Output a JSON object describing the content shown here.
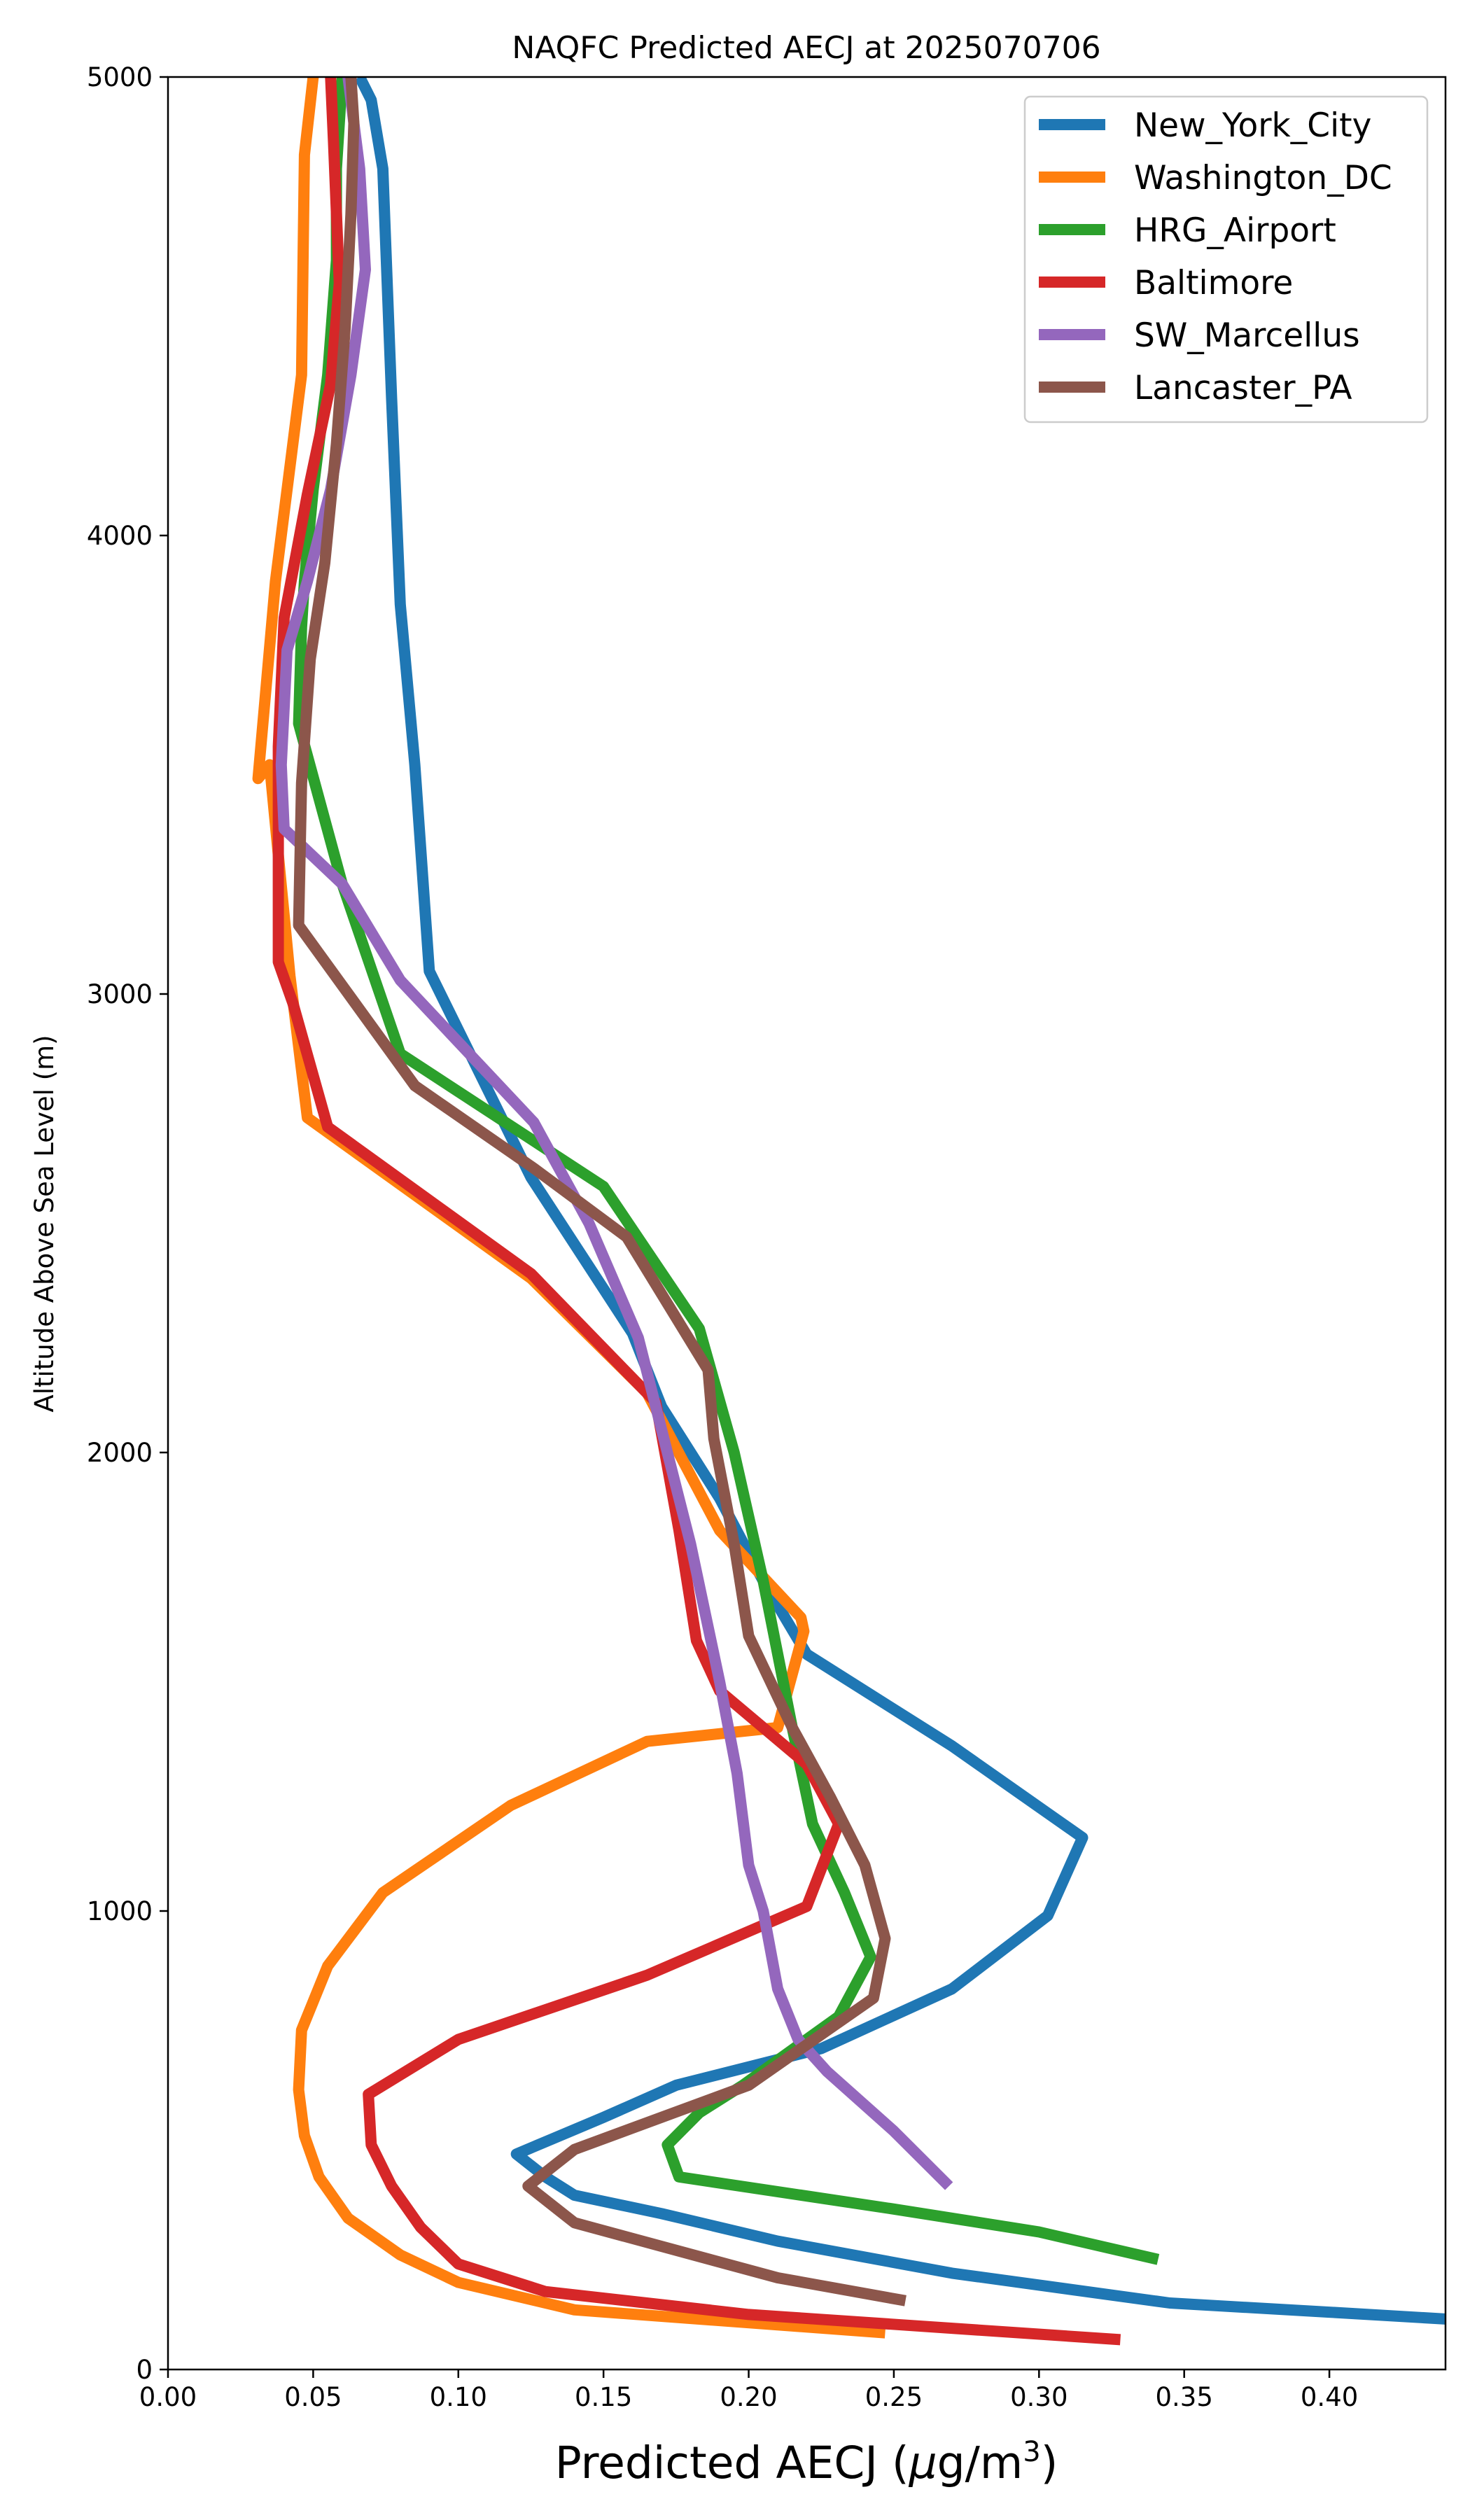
{
  "chart_data": {
    "type": "line",
    "orientation": "vertical-profile",
    "title": "NAQFC Predicted AECJ at 2025070706",
    "xlabel_main": "Predicted AECJ (",
    "xlabel_mu": "μ",
    "xlabel_unit": "g/m",
    "xlabel_sup": "3",
    "xlabel_close": ")",
    "ylabel": "Altitude Above Sea Level (m)",
    "xlim": [
      0.0,
      0.44
    ],
    "ylim": [
      0,
      5000
    ],
    "x_ticks": [
      0.0,
      0.05,
      0.1,
      0.15,
      0.2,
      0.25,
      0.3,
      0.35,
      0.4
    ],
    "x_tick_labels": [
      "0.00",
      "0.05",
      "0.10",
      "0.15",
      "0.20",
      "0.25",
      "0.30",
      "0.35",
      "0.40"
    ],
    "y_ticks": [
      0,
      1000,
      2000,
      3000,
      4000,
      5000
    ],
    "y_tick_labels": [
      "0",
      "1000",
      "2000",
      "3000",
      "4000",
      "5000"
    ],
    "grid": false,
    "legend_position": "top-right",
    "series": [
      {
        "name": "New_York_City",
        "color": "#1f77b4",
        "x": [
          0.44,
          0.4,
          0.345,
          0.27,
          0.21,
          0.17,
          0.14,
          0.13,
          0.12,
          0.15,
          0.175,
          0.225,
          0.27,
          0.303,
          0.315,
          0.27,
          0.22,
          0.205,
          0.19,
          0.17,
          0.16,
          0.125,
          0.09,
          0.085,
          0.08,
          0.077,
          0.074,
          0.07,
          0.066
        ],
        "y": [
          110,
          125,
          145,
          210,
          280,
          340,
          380,
          420,
          470,
          550,
          620,
          700,
          830,
          990,
          1160,
          1360,
          1560,
          1720,
          1900,
          2100,
          2260,
          2600,
          3050,
          3500,
          3850,
          4300,
          4800,
          4950,
          5000
        ]
      },
      {
        "name": "Washington_DC",
        "color": "#ff7f0e",
        "x": [
          0.247,
          0.14,
          0.1,
          0.08,
          0.062,
          0.052,
          0.047,
          0.045,
          0.046,
          0.055,
          0.074,
          0.118,
          0.165,
          0.21,
          0.219,
          0.218,
          0.19,
          0.165,
          0.125,
          0.048,
          0.042,
          0.035,
          0.031,
          0.037,
          0.046,
          0.047,
          0.05
        ],
        "y": [
          80,
          130,
          190,
          250,
          330,
          420,
          510,
          610,
          740,
          880,
          1040,
          1230,
          1370,
          1400,
          1610,
          1640,
          1830,
          2130,
          2380,
          2730,
          3040,
          3500,
          3470,
          3900,
          4350,
          4830,
          5000
        ]
      },
      {
        "name": "HRG_Airport",
        "color": "#2ca02c",
        "x": [
          0.341,
          0.3,
          0.25,
          0.176,
          0.172,
          0.183,
          0.198,
          0.231,
          0.242,
          0.233,
          0.222,
          0.215,
          0.205,
          0.195,
          0.183,
          0.15,
          0.08,
          0.06,
          0.045,
          0.046,
          0.047,
          0.05,
          0.055,
          0.058,
          0.058,
          0.06
        ],
        "y": [
          240,
          300,
          350,
          420,
          490,
          560,
          620,
          770,
          900,
          1040,
          1190,
          1400,
          1720,
          2000,
          2270,
          2580,
          2870,
          3240,
          3590,
          3800,
          3900,
          4100,
          4350,
          4600,
          4800,
          5000
        ]
      },
      {
        "name": "Baltimore",
        "color": "#d62728",
        "x": [
          0.328,
          0.2,
          0.13,
          0.1,
          0.087,
          0.077,
          0.07,
          0.069,
          0.1,
          0.165,
          0.22,
          0.231,
          0.22,
          0.19,
          0.182,
          0.176,
          0.168,
          0.125,
          0.055,
          0.043,
          0.038,
          0.038,
          0.038,
          0.04,
          0.048,
          0.056,
          0.059,
          0.057,
          0.056
        ],
        "y": [
          65,
          120,
          170,
          230,
          310,
          400,
          490,
          600,
          720,
          860,
          1010,
          1190,
          1320,
          1480,
          1590,
          1830,
          2110,
          2390,
          2710,
          2980,
          3070,
          3340,
          3540,
          3820,
          4090,
          4330,
          4550,
          4860,
          5000
        ]
      },
      {
        "name": "SW_Marcellus",
        "color": "#9467bd",
        "x": [
          0.269,
          0.25,
          0.227,
          0.217,
          0.21,
          0.205,
          0.2,
          0.196,
          0.19,
          0.18,
          0.17,
          0.162,
          0.145,
          0.126,
          0.08,
          0.06,
          0.04,
          0.039,
          0.041,
          0.048,
          0.056,
          0.063,
          0.068,
          0.066,
          0.063,
          0.062
        ],
        "y": [
          400,
          520,
          650,
          720,
          830,
          1000,
          1100,
          1300,
          1500,
          1800,
          2050,
          2250,
          2500,
          2720,
          3030,
          3240,
          3360,
          3500,
          3750,
          3900,
          4100,
          4350,
          4580,
          4800,
          4950,
          5000
        ]
      },
      {
        "name": "Lancaster_PA",
        "color": "#8c564b",
        "x": [
          0.254,
          0.21,
          0.14,
          0.124,
          0.14,
          0.2,
          0.243,
          0.247,
          0.24,
          0.228,
          0.215,
          0.2,
          0.195,
          0.188,
          0.186,
          0.158,
          0.126,
          0.085,
          0.045,
          0.046,
          0.049,
          0.054,
          0.058,
          0.061,
          0.063,
          0.064,
          0.063
        ],
        "y": [
          150,
          200,
          320,
          400,
          480,
          620,
          810,
          940,
          1100,
          1250,
          1400,
          1600,
          1800,
          2030,
          2180,
          2470,
          2620,
          2800,
          3150,
          3460,
          3730,
          3940,
          4200,
          4450,
          4700,
          4900,
          5000
        ]
      }
    ]
  }
}
